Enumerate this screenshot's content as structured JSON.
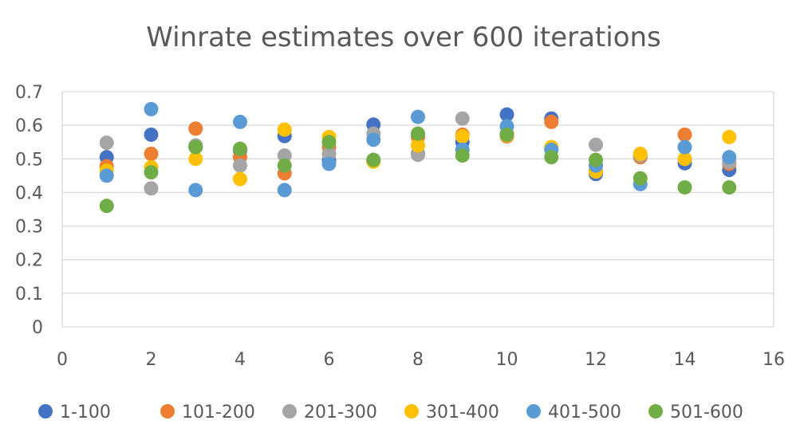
{
  "chart_data": {
    "type": "scatter",
    "title": "Winrate estimates over 600 iterations",
    "xlabel": "",
    "ylabel": "",
    "xlim": [
      0,
      16
    ],
    "ylim": [
      0,
      0.7
    ],
    "x_ticks": [
      0,
      2,
      4,
      6,
      8,
      10,
      12,
      14,
      16
    ],
    "y_ticks": [
      0,
      0.1,
      0.2,
      0.3,
      0.4,
      0.5,
      0.6,
      0.7
    ],
    "x_tick_labels": [
      "0",
      "2",
      "4",
      "6",
      "8",
      "10",
      "12",
      "14",
      "16"
    ],
    "y_tick_labels": [
      "0",
      "0.1",
      "0.2",
      "0.3",
      "0.4",
      "0.5",
      "0.6",
      "0.7"
    ],
    "grid": "horizontal",
    "legend_position": "bottom",
    "x": [
      1,
      2,
      3,
      4,
      5,
      6,
      7,
      8,
      9,
      10,
      11,
      12,
      13,
      14,
      15
    ],
    "series": [
      {
        "name": "1-100",
        "color": "#4472C4",
        "values": [
          0.505,
          0.572,
          0.535,
          0.525,
          0.568,
          0.495,
          0.602,
          0.515,
          0.55,
          0.632,
          0.62,
          0.455,
          0.505,
          0.487,
          0.467
        ]
      },
      {
        "name": "101-200",
        "color": "#ED7D31",
        "values": [
          0.478,
          0.515,
          0.59,
          0.505,
          0.457,
          0.535,
          0.495,
          0.565,
          0.572,
          0.567,
          0.61,
          0.465,
          0.505,
          0.572,
          0.485
        ]
      },
      {
        "name": "201-300",
        "color": "#A5A5A5",
        "values": [
          0.548,
          0.412,
          0.54,
          0.48,
          0.51,
          0.515,
          0.575,
          0.512,
          0.62,
          0.575,
          0.53,
          0.542,
          0.51,
          0.5,
          0.49
        ]
      },
      {
        "name": "301-400",
        "color": "#FFC000",
        "values": [
          0.465,
          0.475,
          0.5,
          0.44,
          0.587,
          0.565,
          0.492,
          0.54,
          0.567,
          0.57,
          0.535,
          0.462,
          0.515,
          0.5,
          0.565
        ]
      },
      {
        "name": "401-500",
        "color": "#5B9BD5",
        "values": [
          0.45,
          0.648,
          0.407,
          0.61,
          0.407,
          0.485,
          0.557,
          0.625,
          0.527,
          0.597,
          0.527,
          0.48,
          0.425,
          0.535,
          0.505
        ]
      },
      {
        "name": "501-600",
        "color": "#70AD47",
        "values": [
          0.36,
          0.46,
          0.535,
          0.53,
          0.48,
          0.55,
          0.497,
          0.575,
          0.51,
          0.572,
          0.505,
          0.497,
          0.442,
          0.415,
          0.415
        ]
      }
    ]
  },
  "colors": {
    "axis": "#d9d9d9",
    "grid": "#d9d9d9",
    "text": "#595959",
    "background": "#ffffff"
  }
}
